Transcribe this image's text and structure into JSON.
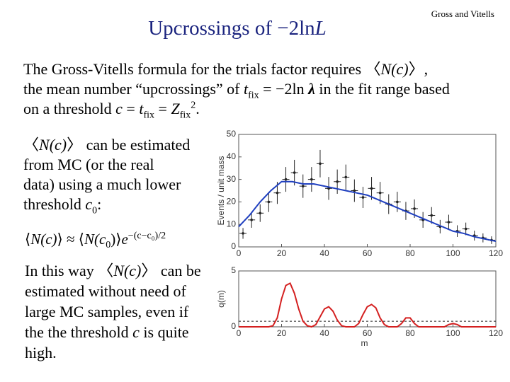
{
  "title": [
    "Upcrossings of −2ln",
    "L"
  ],
  "author": "Gross and Vitells",
  "intro": [
    "The Gross-Vitells formula for the trials factor requires 〈",
    "N(c)",
    "〉,",
    "the mean number “upcrossings” of ",
    "t",
    "fix",
    " = −2ln ",
    "λ",
    " in the fit range based",
    "on a threshold ",
    "c",
    " = ",
    "t",
    "fix",
    " = ",
    "Z",
    "fix",
    "2",
    "."
  ],
  "estimate": [
    "〈",
    "N(c)",
    "〉 can be estimated",
    "from  MC (or the real",
    "data) using a much lower",
    "threshold ",
    "c",
    "0",
    ":"
  ],
  "formula": [
    "⟨",
    "N(c)",
    "⟩ ≈ ⟨",
    "N(c",
    "0",
    ")⟩",
    "e",
    "−(c−c₀)/2"
  ],
  "conclusion": [
    "In this way 〈",
    "N(c)",
    "〉 can be",
    "estimated without need of",
    "large MC samples, even if",
    "the the threshold ",
    "c",
    " is quite",
    "high."
  ],
  "chart_data": [
    {
      "type": "scatter",
      "y_label": "Events / unit mass",
      "xlim": [
        0,
        120
      ],
      "ylim": [
        0,
        50
      ],
      "xticks": [
        0,
        20,
        40,
        60,
        80,
        100,
        120
      ],
      "yticks": [
        0,
        10,
        20,
        30,
        40,
        50
      ],
      "series": [
        {
          "color": "#222222",
          "x": [
            2,
            6,
            10,
            14,
            18,
            22,
            26,
            30,
            34,
            38,
            42,
            46,
            50,
            54,
            58,
            62,
            66,
            70,
            74,
            78,
            82,
            86,
            90,
            94,
            98,
            102,
            106,
            110,
            114,
            118
          ],
          "values": [
            6,
            12,
            15,
            20,
            24,
            30,
            33,
            27,
            30,
            37,
            26,
            29,
            31,
            25,
            22,
            26,
            24,
            19,
            20,
            16,
            17,
            12,
            14,
            9,
            11,
            7,
            8,
            5,
            4,
            3
          ],
          "errors": [
            2.4,
            3.5,
            3.9,
            4.5,
            4.9,
            5.5,
            5.7,
            5.2,
            5.5,
            6.1,
            5.1,
            5.4,
            5.6,
            5,
            4.7,
            5.1,
            4.9,
            4.4,
            4.5,
            4,
            4.1,
            3.5,
            3.7,
            3,
            3.3,
            2.6,
            2.8,
            2.2,
            2,
            1.7
          ]
        },
        {
          "color": "#1f3fbf",
          "x": [
            0,
            5,
            10,
            15,
            20,
            25,
            30,
            35,
            40,
            45,
            50,
            55,
            60,
            65,
            70,
            75,
            80,
            85,
            90,
            95,
            100,
            105,
            110,
            115,
            120
          ],
          "values": [
            9,
            14,
            20,
            25,
            29,
            29,
            28,
            28,
            27,
            26,
            25,
            24,
            23,
            21,
            19,
            17,
            15,
            13,
            11,
            9,
            7,
            6,
            4.5,
            3.5,
            2.5
          ]
        }
      ]
    },
    {
      "type": "line",
      "y_label": "q(m)",
      "x_label": "m",
      "xlim": [
        0,
        120
      ],
      "ylim": [
        0,
        5
      ],
      "xticks": [
        0,
        20,
        40,
        60,
        80,
        100,
        120
      ],
      "yticks": [
        0,
        5
      ],
      "threshold": 0.5,
      "series": [
        {
          "color": "#d42020",
          "x": [
            0,
            2,
            4,
            6,
            8,
            10,
            12,
            14,
            16,
            18,
            20,
            22,
            24,
            26,
            28,
            30,
            32,
            34,
            36,
            38,
            40,
            42,
            44,
            46,
            48,
            50,
            52,
            54,
            56,
            58,
            60,
            62,
            64,
            66,
            68,
            70,
            72,
            74,
            76,
            78,
            80,
            82,
            84,
            86,
            88,
            90,
            92,
            94,
            96,
            98,
            100,
            102,
            104,
            106,
            108,
            110,
            112,
            114,
            116,
            118,
            120
          ],
          "values": [
            0,
            0,
            0,
            0,
            0,
            0,
            0,
            0,
            0.1,
            0.8,
            2.5,
            3.7,
            3.9,
            3.0,
            1.6,
            0.5,
            0.1,
            0,
            0.2,
            0.9,
            1.6,
            1.8,
            1.4,
            0.6,
            0.1,
            0,
            0,
            0,
            0.3,
            1.1,
            1.8,
            2.0,
            1.7,
            0.8,
            0.2,
            0,
            0,
            0,
            0.3,
            0.8,
            0.8,
            0.3,
            0,
            0,
            0,
            0,
            0,
            0,
            0,
            0.2,
            0.3,
            0.2,
            0,
            0,
            0,
            0,
            0,
            0,
            0,
            0,
            0
          ]
        }
      ]
    }
  ]
}
